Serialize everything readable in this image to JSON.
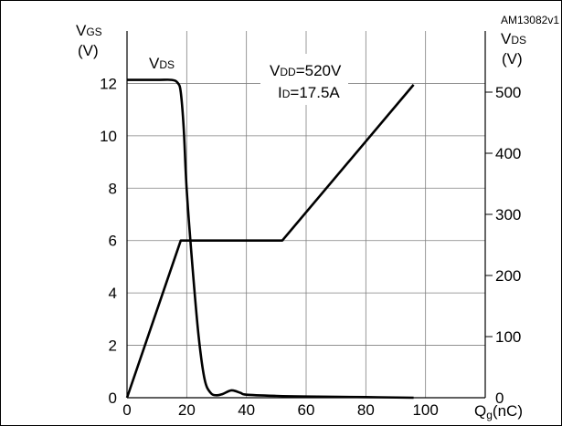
{
  "chart_data": {
    "type": "line",
    "figure_id": "AM13082v1",
    "x_axis": {
      "label_main": "Q",
      "label_sub": "g",
      "label_tail": "(nC)",
      "range": [
        0,
        120
      ],
      "ticks": [
        0,
        20,
        40,
        60,
        80,
        100
      ]
    },
    "y_left_axis": {
      "label_main": "V",
      "label_sub": "GS",
      "unit": "(V)",
      "range": [
        0,
        14
      ],
      "ticks": [
        0,
        2,
        4,
        6,
        8,
        10,
        12
      ]
    },
    "y_right_axis": {
      "label_main": "V",
      "label_sub": "DS",
      "unit": "(V)",
      "range": [
        0,
        600
      ],
      "ticks": [
        0,
        100,
        200,
        300,
        400,
        500
      ]
    },
    "grid": true,
    "conditions": {
      "vdd_main": "V",
      "vdd_sub": "DD",
      "vdd_value": "=520V",
      "id_main": "I",
      "id_sub": "D",
      "id_value": "=17.5A"
    },
    "series": [
      {
        "name_main": "V",
        "name_sub": "DS",
        "axis": "right",
        "x": [
          0,
          10,
          15,
          17,
          18,
          19,
          20,
          22,
          24,
          26,
          28,
          30,
          32,
          35,
          38,
          40,
          50,
          60,
          80,
          96
        ],
        "y": [
          520,
          520,
          520,
          515,
          500,
          440,
          340,
          210,
          100,
          30,
          8,
          4,
          6,
          12,
          8,
          5,
          3,
          2,
          1,
          0
        ]
      },
      {
        "axis": "left",
        "x": [
          0,
          18,
          52,
          96
        ],
        "y": [
          0,
          6.0,
          6.0,
          11.95
        ]
      }
    ]
  }
}
